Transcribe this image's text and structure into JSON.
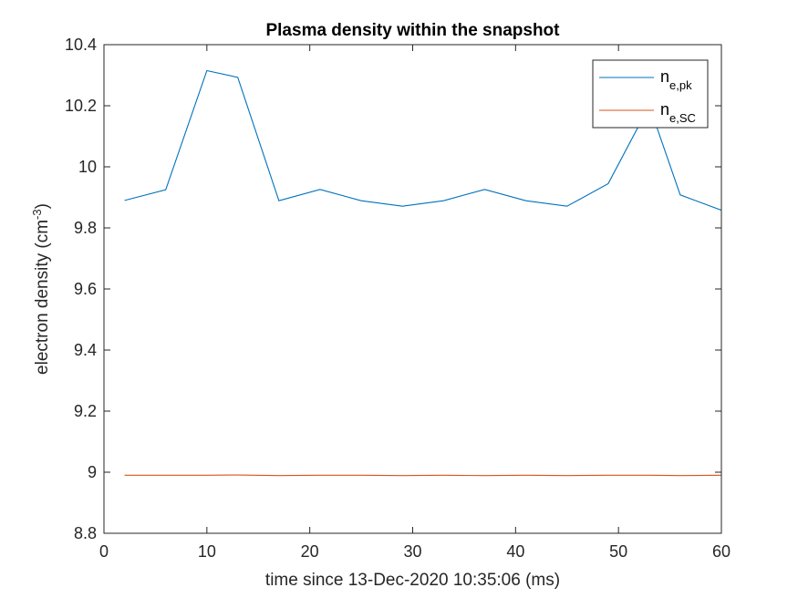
{
  "chart_data": {
    "type": "line",
    "title": "Plasma density within the snapshot",
    "xlabel": "time since 13-Dec-2020 10:35:06 (ms)",
    "ylabel": {
      "main": "electron density (cm",
      "sup": "-3",
      "close": ")"
    },
    "xlim": [
      0,
      60
    ],
    "ylim": [
      8.8,
      10.4
    ],
    "xticks": [
      0,
      10,
      20,
      30,
      40,
      50,
      60
    ],
    "yticks": [
      8.8,
      9,
      9.2,
      9.4,
      9.6,
      9.8,
      10,
      10.2,
      10.4
    ],
    "xtick_labels": [
      "0",
      "10",
      "20",
      "30",
      "40",
      "50",
      "60"
    ],
    "ytick_labels": [
      "8.8",
      "9",
      "9.2",
      "9.4",
      "9.6",
      "9.8",
      "10",
      "10.2",
      "10.4"
    ],
    "grid": false,
    "legend_position": "top-right",
    "series": [
      {
        "name": {
          "base": "n",
          "sub": "e,pk"
        },
        "color": "#0072BD",
        "x": [
          2,
          6,
          10,
          13,
          17,
          21,
          25,
          29,
          33,
          37,
          41,
          45,
          49,
          53,
          56,
          60
        ],
        "y": [
          9.89,
          9.925,
          10.315,
          10.293,
          9.889,
          9.926,
          9.889,
          9.871,
          9.889,
          9.926,
          9.889,
          9.871,
          9.945,
          10.2,
          9.908,
          9.858
        ]
      },
      {
        "name": {
          "base": "n",
          "sub": "e,SC"
        },
        "color": "#D95319",
        "x": [
          2,
          6,
          10,
          13,
          17,
          21,
          25,
          29,
          33,
          37,
          41,
          45,
          49,
          53,
          56,
          60
        ],
        "y": [
          8.99,
          8.99,
          8.99,
          8.991,
          8.989,
          8.99,
          8.99,
          8.989,
          8.99,
          8.989,
          8.99,
          8.989,
          8.99,
          8.99,
          8.989,
          8.99
        ]
      }
    ]
  }
}
